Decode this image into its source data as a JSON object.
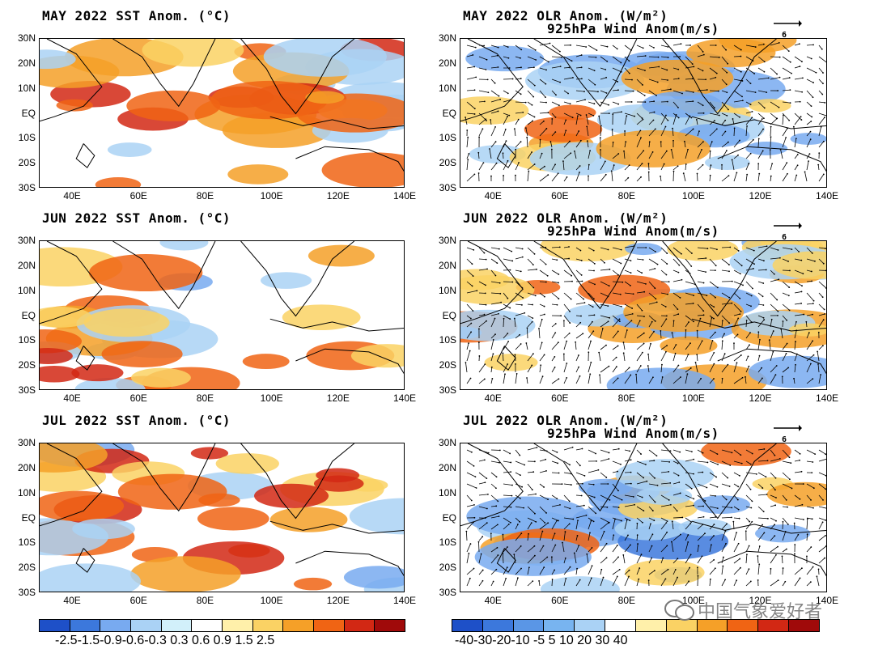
{
  "panels": [
    {
      "id": "may-sst",
      "title": "MAY 2022 SST Anom. (°C)"
    },
    {
      "id": "may-olr",
      "title": "MAY 2022 OLR Anom. (W/m²)",
      "subtitle": "925hPa Wind Anom(m/s)",
      "ref_vector": "6"
    },
    {
      "id": "jun-sst",
      "title": "JUN 2022 SST Anom. (°C)"
    },
    {
      "id": "jun-olr",
      "title": "JUN 2022 OLR Anom. (W/m²)",
      "subtitle": "925hPa Wind Anom(m/s)",
      "ref_vector": "6"
    },
    {
      "id": "jul-sst",
      "title": "JUL 2022 SST Anom. (°C)"
    },
    {
      "id": "jul-olr",
      "title": "JUL 2022 OLR Anom. (W/m²)",
      "subtitle": "925hPa Wind Anom(m/s)",
      "ref_vector": "6"
    }
  ],
  "lat_labels": [
    "30N",
    "20N",
    "10N",
    "EQ",
    "10S",
    "20S",
    "30S"
  ],
  "lon_labels": [
    "40E",
    "60E",
    "80E",
    "100E",
    "120E",
    "140E"
  ],
  "sst_colorbar": {
    "colors": [
      "#1e50c8",
      "#3c78dc",
      "#78aaf0",
      "#aad2f5",
      "#d2f0fa",
      "#ffffff",
      "#fff0aa",
      "#fad264",
      "#f5a028",
      "#f06414",
      "#d22814",
      "#a00a0a"
    ],
    "labels": "-2.5-1.5-0.9-0.6-0.3 0.3  0.6  0.9  1.5  2.5"
  },
  "olr_colorbar": {
    "colors": [
      "#1e50c8",
      "#3c78dc",
      "#5a96e6",
      "#78b4f0",
      "#aad2f5",
      "#ffffff",
      "#fff0aa",
      "#fad264",
      "#f5a028",
      "#f06414",
      "#d22814",
      "#a00a0a"
    ],
    "labels": "-40-30-20-10 -5   5  10  20  30  40"
  },
  "watermark": "中国气象爱好者",
  "palette": {
    "land": "#ffffff",
    "coast": "#000000",
    "warm1": "#fad264",
    "warm2": "#f5a028",
    "warm3": "#f06414",
    "warm4": "#d22814",
    "cool1": "#aad2f5",
    "cool2": "#78aaf0",
    "cool3": "#3c78dc"
  }
}
